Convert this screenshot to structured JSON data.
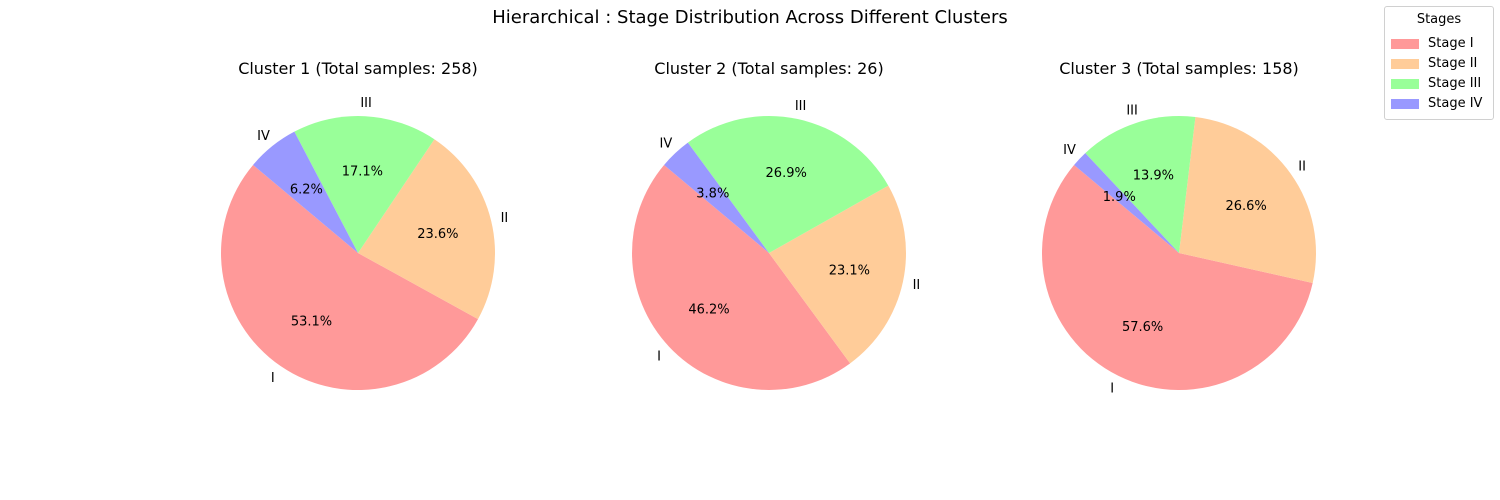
{
  "suptitle": "Hierarchical : Stage Distribution Across Different Clusters",
  "legend": {
    "title": "Stages",
    "placement": "top-right",
    "items": [
      "Stage I",
      "Stage II",
      "Stage III",
      "Stage IV"
    ]
  },
  "colors": [
    "#ff9999",
    "#ffcc99",
    "#99ff99",
    "#9999ff"
  ],
  "chart_data": [
    {
      "type": "pie",
      "title": "Cluster 1 (Total samples: 258)",
      "labels": [
        "I",
        "II",
        "III",
        "IV"
      ],
      "values": [
        53.1,
        23.6,
        17.1,
        6.2
      ],
      "pct_labels": [
        "53.1%",
        "23.6%",
        "17.1%",
        "6.2%"
      ]
    },
    {
      "type": "pie",
      "title": "Cluster 2 (Total samples: 26)",
      "labels": [
        "I",
        "II",
        "III",
        "IV"
      ],
      "values": [
        46.2,
        23.1,
        26.9,
        3.8
      ],
      "pct_labels": [
        "46.2%",
        "23.1%",
        "26.9%",
        "3.8%"
      ]
    },
    {
      "type": "pie",
      "title": "Cluster 3 (Total samples: 158)",
      "labels": [
        "I",
        "II",
        "III",
        "IV"
      ],
      "values": [
        57.6,
        26.6,
        13.9,
        1.9
      ],
      "pct_labels": [
        "57.6%",
        "26.6%",
        "13.9%",
        "1.9%"
      ]
    }
  ]
}
